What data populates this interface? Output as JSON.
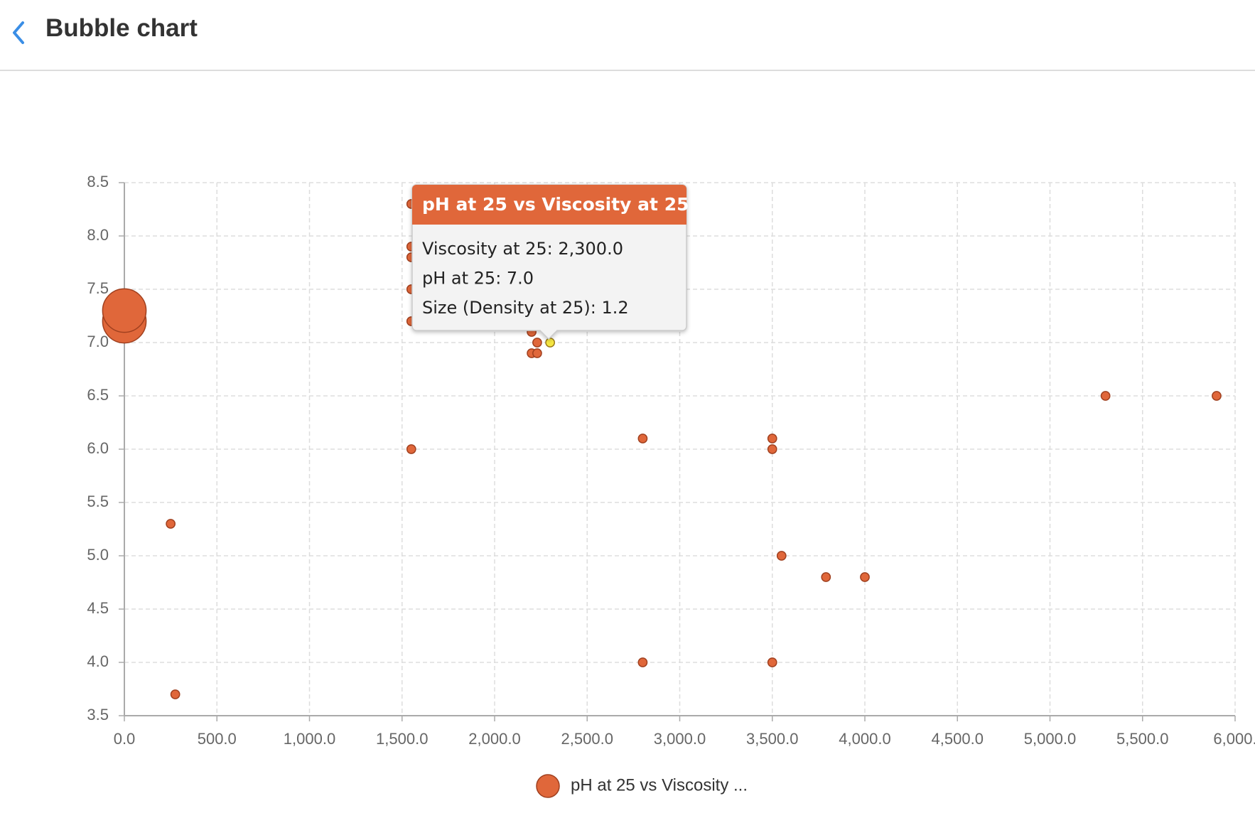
{
  "header": {
    "title": "Bubble chart"
  },
  "chart_data": {
    "type": "bubble",
    "series": [
      {
        "name": "pH at 25 vs Viscosity ...",
        "color": "#e0673a",
        "x": [
          0,
          0,
          1550,
          1550,
          1550,
          1550,
          1550,
          2200,
          2230,
          2200,
          2230,
          2300,
          1550,
          2800,
          3500,
          3500,
          5300,
          5900,
          250,
          275,
          3550,
          3790,
          4000,
          2800,
          3500
        ],
        "values": [
          7.2,
          7.3,
          8.3,
          7.9,
          7.8,
          7.5,
          7.2,
          7.1,
          7.0,
          6.9,
          6.9,
          7.0,
          6.0,
          6.1,
          6.1,
          6.0,
          6.5,
          6.5,
          5.3,
          3.7,
          5.0,
          4.8,
          4.8,
          4.0,
          4.0
        ],
        "sizes": [
          6,
          6,
          1.2,
          1.2,
          1.2,
          1.2,
          1.2,
          1.2,
          1.2,
          1.2,
          1.2,
          1.2,
          1.2,
          1.2,
          1.2,
          1.2,
          1.2,
          1.2,
          1.2,
          1.2,
          1.2,
          1.2,
          1.2,
          1.2,
          1.2
        ]
      }
    ],
    "highlight": {
      "index": 11,
      "color": "#f5e642"
    },
    "xlim": [
      0,
      6000
    ],
    "xticks": [
      {
        "value": 0,
        "label": "0.0"
      },
      {
        "value": 500,
        "label": "500.0"
      },
      {
        "value": 1000,
        "label": "1,000.0"
      },
      {
        "value": 1500,
        "label": "1,500.0"
      },
      {
        "value": 2000,
        "label": "2,000.0"
      },
      {
        "value": 2500,
        "label": "2,500.0"
      },
      {
        "value": 3000,
        "label": "3,000.0"
      },
      {
        "value": 3500,
        "label": "3,500.0"
      },
      {
        "value": 4000,
        "label": "4,000.0"
      },
      {
        "value": 4500,
        "label": "4,500.0"
      },
      {
        "value": 5000,
        "label": "5,000.0"
      },
      {
        "value": 5500,
        "label": "5,500.0"
      },
      {
        "value": 6000,
        "label": "6,000."
      }
    ],
    "ylim": [
      3.5,
      8.5
    ],
    "yticks": [
      3.5,
      {
        "value": 4,
        "label": "4.0"
      },
      4.5,
      {
        "value": 5,
        "label": "5.0"
      },
      5.5,
      {
        "value": 6,
        "label": "6.0"
      },
      6.5,
      {
        "value": 7,
        "label": "7.0"
      },
      7.5,
      {
        "value": 8,
        "label": "8.0"
      },
      8.5
    ],
    "grid": true,
    "legend": "bottom",
    "tooltip": {
      "title": "pH at 25 vs Viscosity at 25",
      "lines": [
        "Viscosity at 25: 2,300.0",
        "pH at 25: 7.0",
        "Size (Density at 25): 1.2"
      ]
    }
  }
}
